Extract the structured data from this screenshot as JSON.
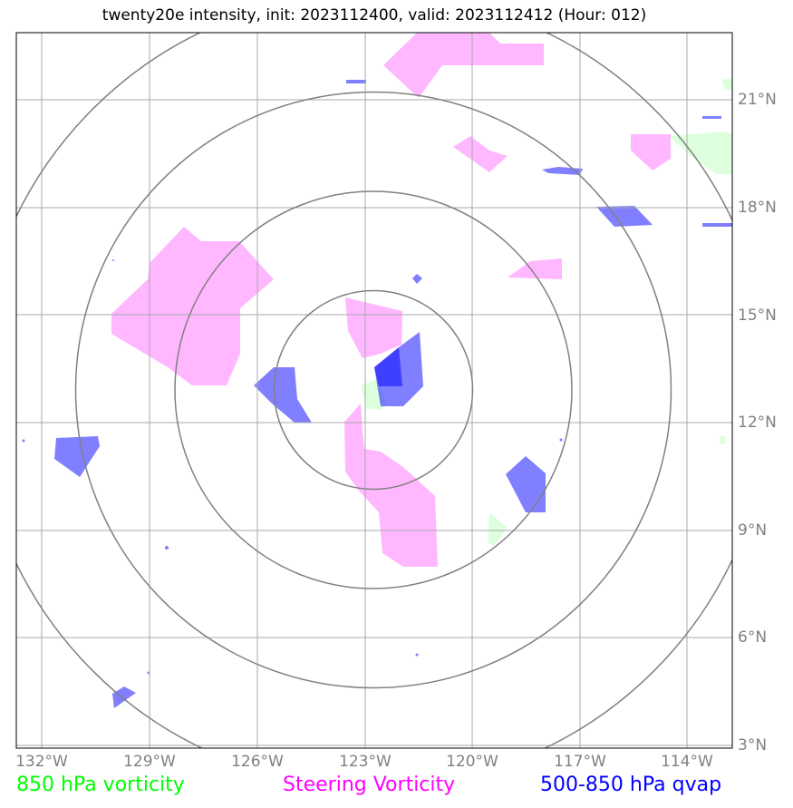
{
  "title": "twenty20e intensity, init: 2023112400, valid: 2023112412 (Hour: 012)",
  "map": {
    "lon_ticks": [
      "132°W",
      "129°W",
      "126°W",
      "123°W",
      "120°W",
      "117°W",
      "114°W"
    ],
    "lat_ticks": [
      "21°N",
      "18°N",
      "15°N",
      "12°N",
      "9°N",
      "6°N",
      "3°N"
    ],
    "range_rings": 4,
    "colors": {
      "grid": "#a9a9a9",
      "rings": "#808080",
      "vort850": "#00ff00",
      "steering": "#ff00ff",
      "qvap": "#0000ff"
    }
  },
  "legend": {
    "vort850": {
      "label": "850 hPa vorticity",
      "color": "#00ff00"
    },
    "steering": {
      "label": "Steering Vorticity",
      "color": "#ff00ff"
    },
    "qvap": {
      "label": "500-850 hPa qvap",
      "color": "#0000ff"
    }
  }
}
